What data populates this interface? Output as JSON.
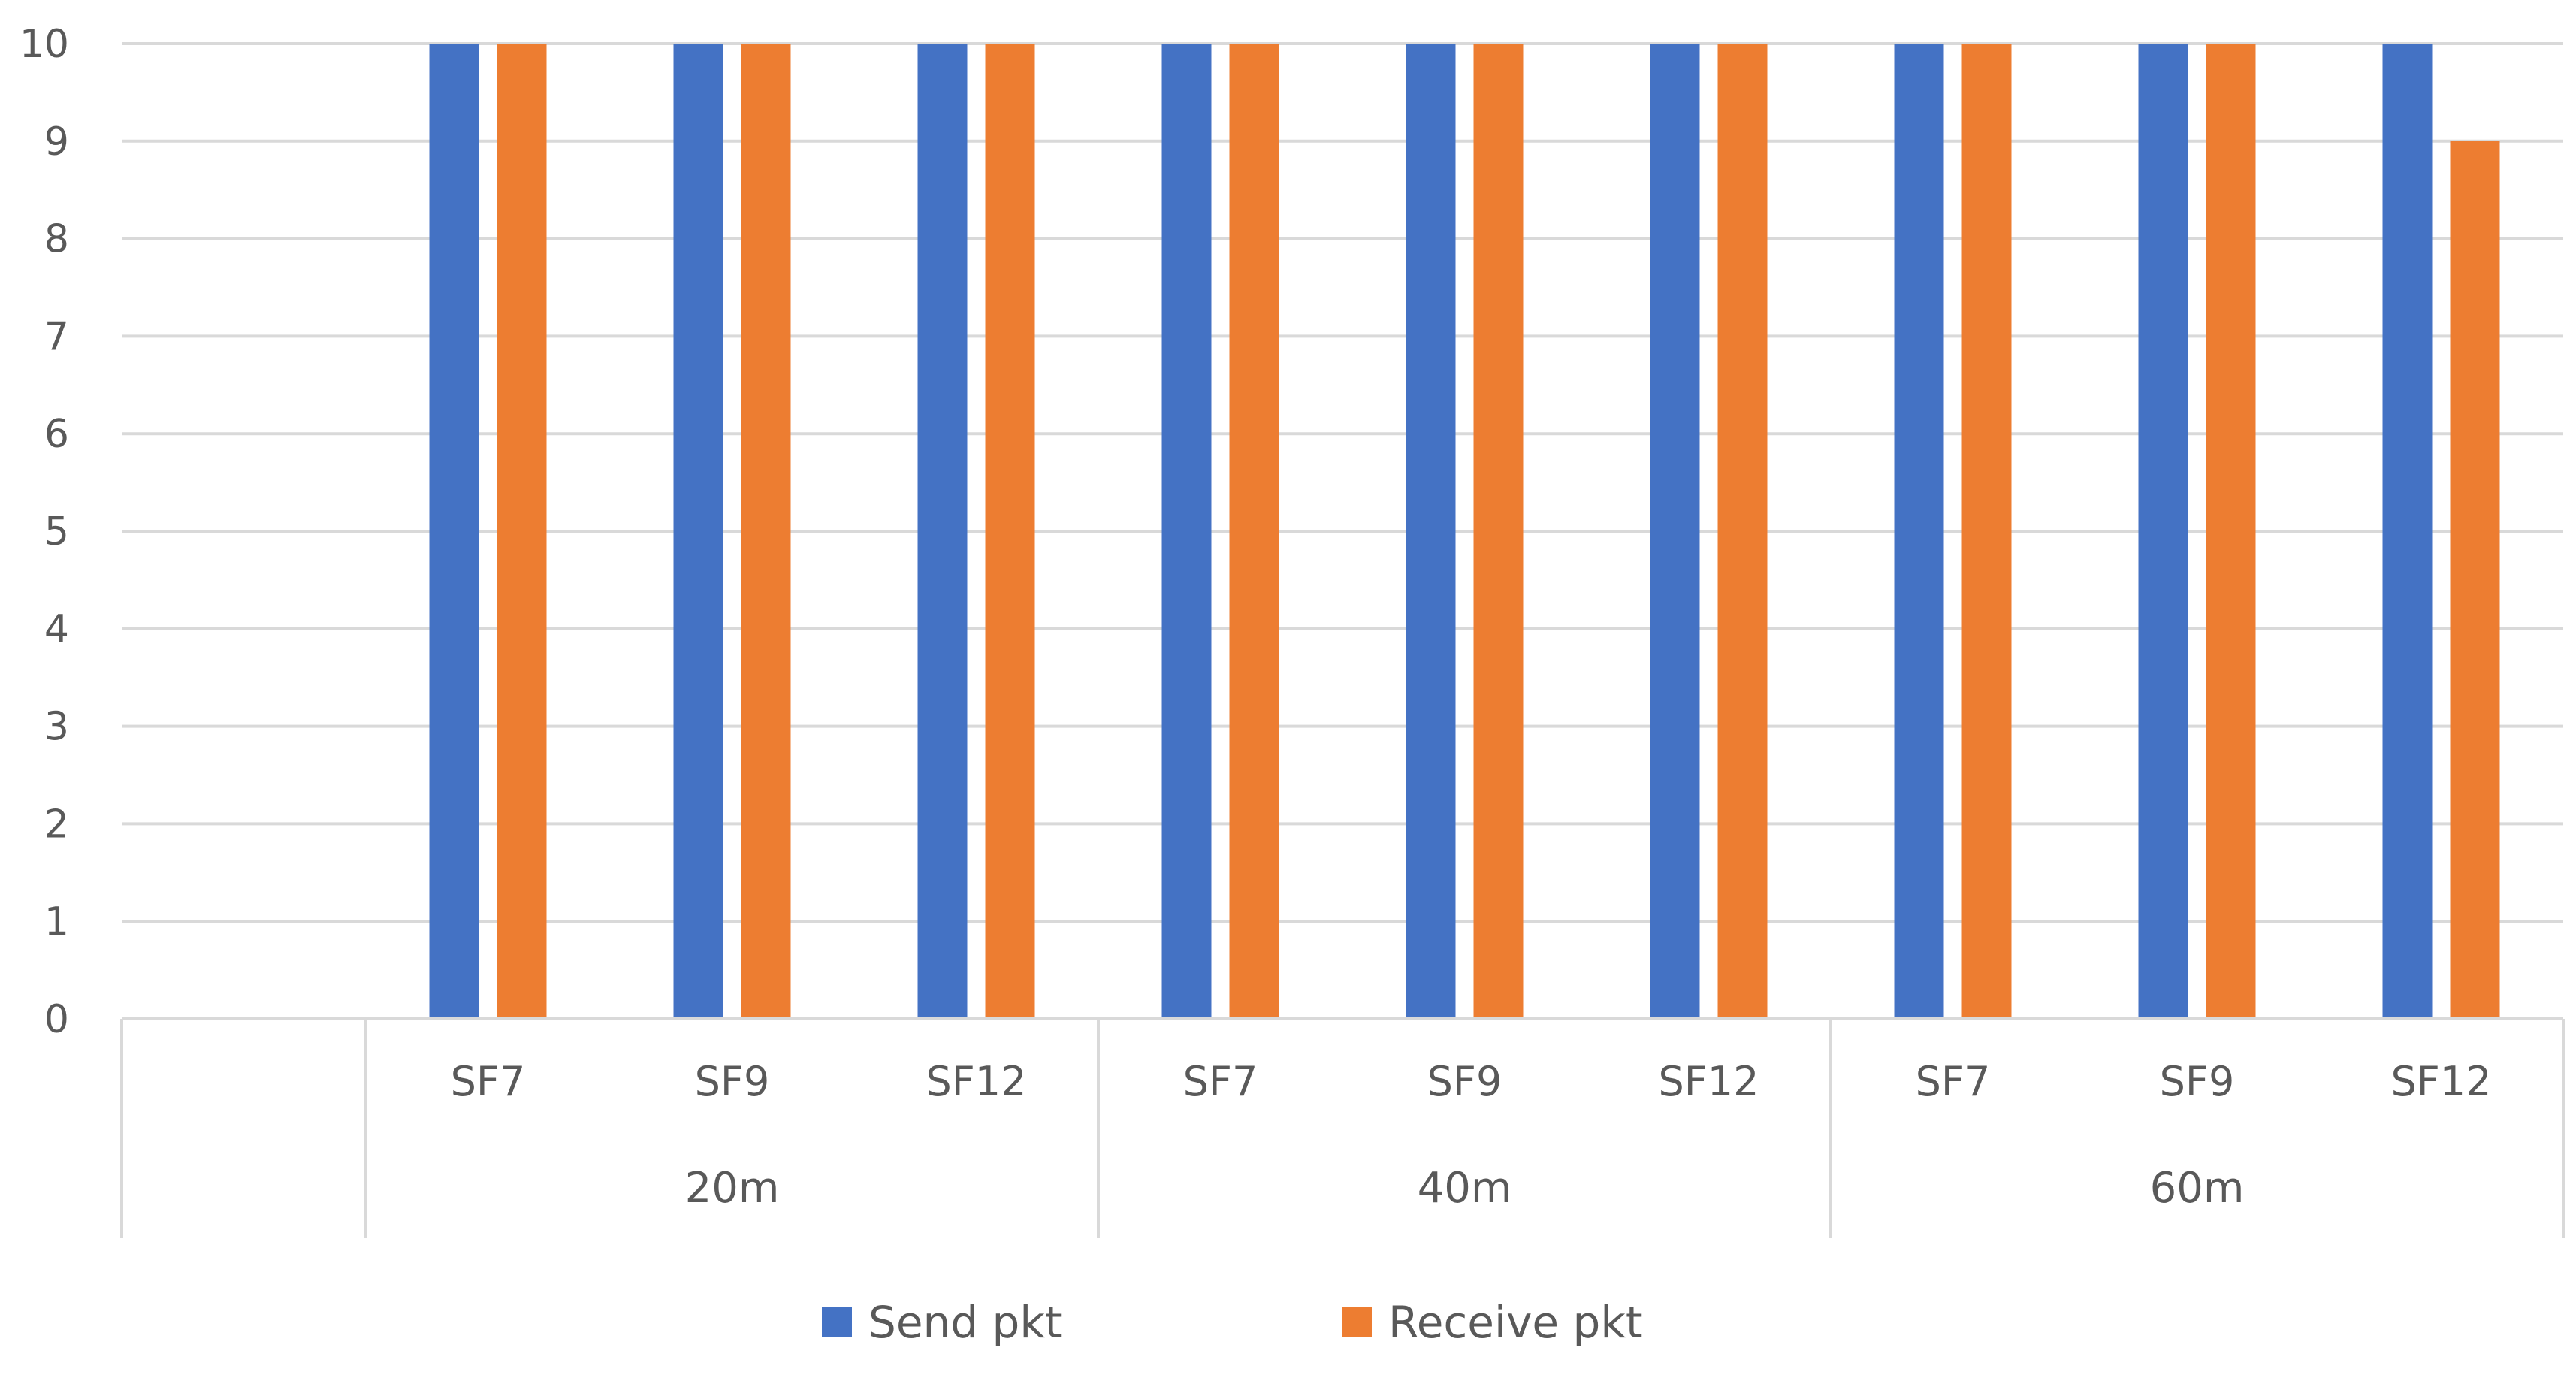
{
  "chart_data": {
    "type": "bar",
    "title": "",
    "xlabel": "",
    "ylabel": "",
    "ylim": [
      0,
      10
    ],
    "yticks": [
      0,
      1,
      2,
      3,
      4,
      5,
      6,
      7,
      8,
      9,
      10
    ],
    "grid": true,
    "legend_position": "bottom",
    "categories": [
      "SF7",
      "SF9",
      "SF12",
      "SF7",
      "SF9",
      "SF12",
      "SF7",
      "SF9",
      "SF12"
    ],
    "groups": [
      {
        "label": "20m",
        "span": 3
      },
      {
        "label": "40m",
        "span": 3
      },
      {
        "label": "60m",
        "span": 3
      }
    ],
    "series": [
      {
        "name": "Send pkt",
        "color": "#4472C4",
        "values": [
          10,
          10,
          10,
          10,
          10,
          10,
          10,
          10,
          10
        ]
      },
      {
        "name": "Receive pkt",
        "color": "#ED7D31",
        "values": [
          10,
          10,
          10,
          10,
          10,
          10,
          10,
          10,
          9
        ]
      }
    ]
  }
}
